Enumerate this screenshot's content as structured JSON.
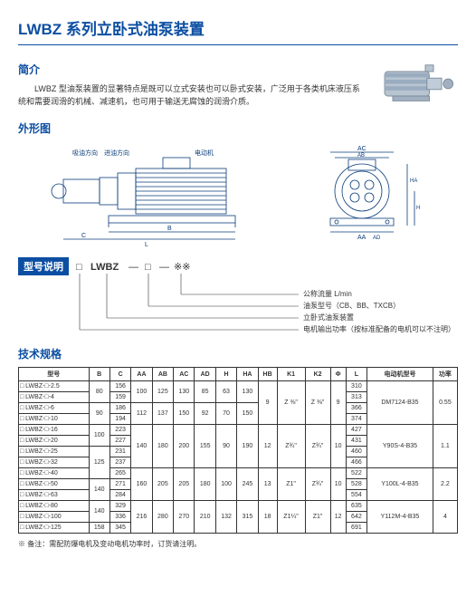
{
  "title": "LWBZ 系列立卧式油泵装置",
  "intro": {
    "heading": "简介",
    "text": "LWBZ 型油泵装置的显著特点是既可以立式安装也可以卧式安装，广泛用于各类机床液压系统和需要润滑的机械、减速机，也可用于输送无腐蚀的润滑介质。"
  },
  "outline": {
    "heading": "外形图",
    "labels": {
      "oilout": "吸油方向",
      "oilin": "进油方向",
      "motor": "电动机"
    },
    "dims": [
      "AA",
      "AB",
      "AC",
      "AD",
      "B",
      "C",
      "H",
      "HA",
      "HB",
      "K1",
      "K2",
      "Φ",
      "L"
    ]
  },
  "model": {
    "heading": "型号说明",
    "pattern_prefix": "□",
    "pattern_name": "LWBZ",
    "pattern_sep": "—",
    "pattern_mid": "□",
    "pattern_suffix": "※※",
    "lines": [
      "公称流量 L/min",
      "油泵型号（CB、BB、TXCB）",
      "立卧式油泵装置",
      "电机输出功率（按标准配备的电机可以不注明）"
    ]
  },
  "spec": {
    "heading": "技术规格",
    "columns": [
      "型号",
      "B",
      "C",
      "AA",
      "AB",
      "AC",
      "AD",
      "H",
      "HA",
      "HB",
      "K1",
      "K2",
      "Φ",
      "L",
      "电动机型号",
      "功率"
    ],
    "rows": [
      {
        "m": "□ LWBZ-□-2.5",
        "B": "80",
        "C": "156",
        "AA": "100",
        "AB": "125",
        "AC": "130",
        "AD": "85",
        "H": "63",
        "HA": "130",
        "HB": "9",
        "K1": "Z ⅜\"",
        "K2": "Z ⅜\"",
        "PHI": "9",
        "L": "310",
        "motor": "DM7124-B35",
        "pw": "0.55"
      },
      {
        "m": "□ LWBZ-□-4",
        "B": "",
        "C": "159",
        "AA": "",
        "AB": "",
        "AC": "",
        "AD": "",
        "H": "",
        "HA": "",
        "HB": "",
        "K1": "",
        "K2": "",
        "PHI": "",
        "L": "313",
        "motor": "",
        "pw": ""
      },
      {
        "m": "□ LWBZ-□-6",
        "B": "90",
        "C": "186",
        "AA": "112",
        "AB": "137",
        "AC": "150",
        "AD": "92",
        "H": "70",
        "HA": "150",
        "HB": "",
        "K1": "",
        "K2": "",
        "PHI": "",
        "L": "366",
        "motor": "",
        "pw": ""
      },
      {
        "m": "□ LWBZ-□-10",
        "B": "",
        "C": "194",
        "AA": "",
        "AB": "",
        "AC": "",
        "AD": "",
        "H": "",
        "HA": "",
        "HB": "",
        "K1": "",
        "K2": "",
        "PHI": "",
        "L": "374",
        "motor": "",
        "pw": ""
      },
      {
        "m": "□ LWBZ-□-16",
        "B": "100",
        "C": "223",
        "AA": "140",
        "AB": "180",
        "AC": "200",
        "AD": "155",
        "H": "90",
        "HA": "190",
        "HB": "12",
        "K1": "Z¾\"",
        "K2": "Z¾\"",
        "PHI": "10",
        "L": "427",
        "motor": "Y90S-4-B35",
        "pw": "1.1"
      },
      {
        "m": "□ LWBZ-□-20",
        "B": "",
        "C": "227",
        "AA": "",
        "AB": "",
        "AC": "",
        "AD": "",
        "H": "",
        "HA": "",
        "HB": "",
        "K1": "",
        "K2": "",
        "PHI": "",
        "L": "431",
        "motor": "",
        "pw": ""
      },
      {
        "m": "□ LWBZ-□-25",
        "B": "125",
        "C": "231",
        "AA": "",
        "AB": "",
        "AC": "",
        "AD": "",
        "H": "",
        "HA": "",
        "HB": "",
        "K1": "",
        "K2": "",
        "PHI": "",
        "L": "460",
        "motor": "",
        "pw": ""
      },
      {
        "m": "□ LWBZ-□-32",
        "B": "",
        "C": "237",
        "AA": "",
        "AB": "",
        "AC": "",
        "AD": "",
        "H": "",
        "HA": "",
        "HB": "",
        "K1": "",
        "K2": "",
        "PHI": "",
        "L": "466",
        "motor": "",
        "pw": ""
      },
      {
        "m": "□ LWBZ-□-40",
        "B": "",
        "C": "265",
        "AA": "160",
        "AB": "205",
        "AC": "205",
        "AD": "180",
        "H": "100",
        "HA": "245",
        "HB": "13",
        "K1": "Z1\"",
        "K2": "Z¾\"",
        "PHI": "10",
        "L": "522",
        "motor": "Y100L-4-B35",
        "pw": "2.2"
      },
      {
        "m": "□ LWBZ-□-50",
        "B": "140",
        "C": "271",
        "AA": "",
        "AB": "",
        "AC": "",
        "AD": "",
        "H": "",
        "HA": "",
        "HB": "",
        "K1": "",
        "K2": "",
        "PHI": "",
        "L": "528",
        "motor": "",
        "pw": ""
      },
      {
        "m": "□ LWBZ-□-63",
        "B": "",
        "C": "284",
        "AA": "",
        "AB": "",
        "AC": "",
        "AD": "",
        "H": "",
        "HA": "",
        "HB": "",
        "K1": "",
        "K2": "",
        "PHI": "",
        "L": "554",
        "motor": "",
        "pw": ""
      },
      {
        "m": "□ LWBZ-□-80",
        "B": "140",
        "C": "329",
        "AA": "216",
        "AB": "280",
        "AC": "270",
        "AD": "210",
        "H": "132",
        "HA": "315",
        "HB": "18",
        "K1": "Z1¼\"",
        "K2": "Z1\"",
        "PHI": "12",
        "L": "635",
        "motor": "Y112M-4-B35",
        "pw": "4"
      },
      {
        "m": "□ LWBZ-□-100",
        "B": "",
        "C": "336",
        "AA": "",
        "AB": "",
        "AC": "",
        "AD": "",
        "H": "",
        "HA": "",
        "HB": "",
        "K1": "",
        "K2": "",
        "PHI": "",
        "L": "642",
        "motor": "",
        "pw": ""
      },
      {
        "m": "□ LWBZ-□-125",
        "B": "158",
        "C": "345",
        "AA": "",
        "AB": "",
        "AC": "",
        "AD": "",
        "H": "",
        "HA": "",
        "HB": "",
        "K1": "",
        "K2": "",
        "PHI": "",
        "L": "691",
        "motor": "",
        "pw": ""
      }
    ],
    "footnote": "※ 备注：需配防爆电机及变动电机功率时，订货请注明。"
  },
  "colors": {
    "brand": "#0c4ea2",
    "line": "#0c4ea2",
    "drawing": "#0a3d7a",
    "text": "#333333",
    "border": "#333333"
  }
}
